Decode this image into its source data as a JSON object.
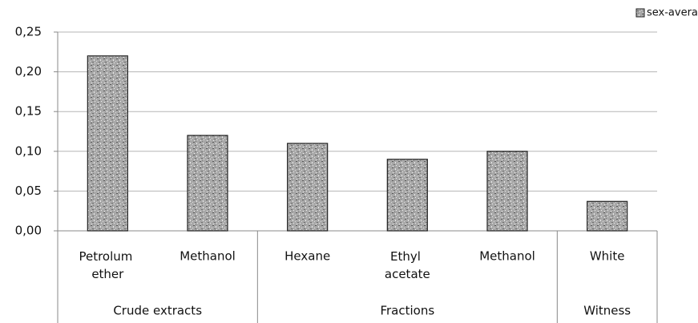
{
  "chart_data": {
    "type": "bar",
    "categories": [
      "Petrolum ether",
      "Methanol",
      "Hexane",
      "Ethyl acetate",
      "Methanol",
      "White"
    ],
    "groups": [
      {
        "name": "Crude extracts",
        "size": 2
      },
      {
        "name": "Fractions",
        "size": 3
      },
      {
        "name": "Witness",
        "size": 1
      }
    ],
    "series": [
      {
        "name": "sex-average ratio",
        "color": "#9a9a9a",
        "values": [
          0.22,
          0.12,
          0.11,
          0.09,
          0.1,
          0.037
        ]
      }
    ],
    "ylim": [
      0,
      0.25
    ],
    "yticks": [
      {
        "value": 0,
        "label": "0,00"
      },
      {
        "value": 0.05,
        "label": "0,05"
      },
      {
        "value": 0.1,
        "label": "0,10"
      },
      {
        "value": 0.15,
        "label": "0,15"
      },
      {
        "value": 0.2,
        "label": "0,20"
      },
      {
        "value": 0.25,
        "label": "0,25"
      }
    ],
    "grid": true,
    "legend": "top-right"
  }
}
